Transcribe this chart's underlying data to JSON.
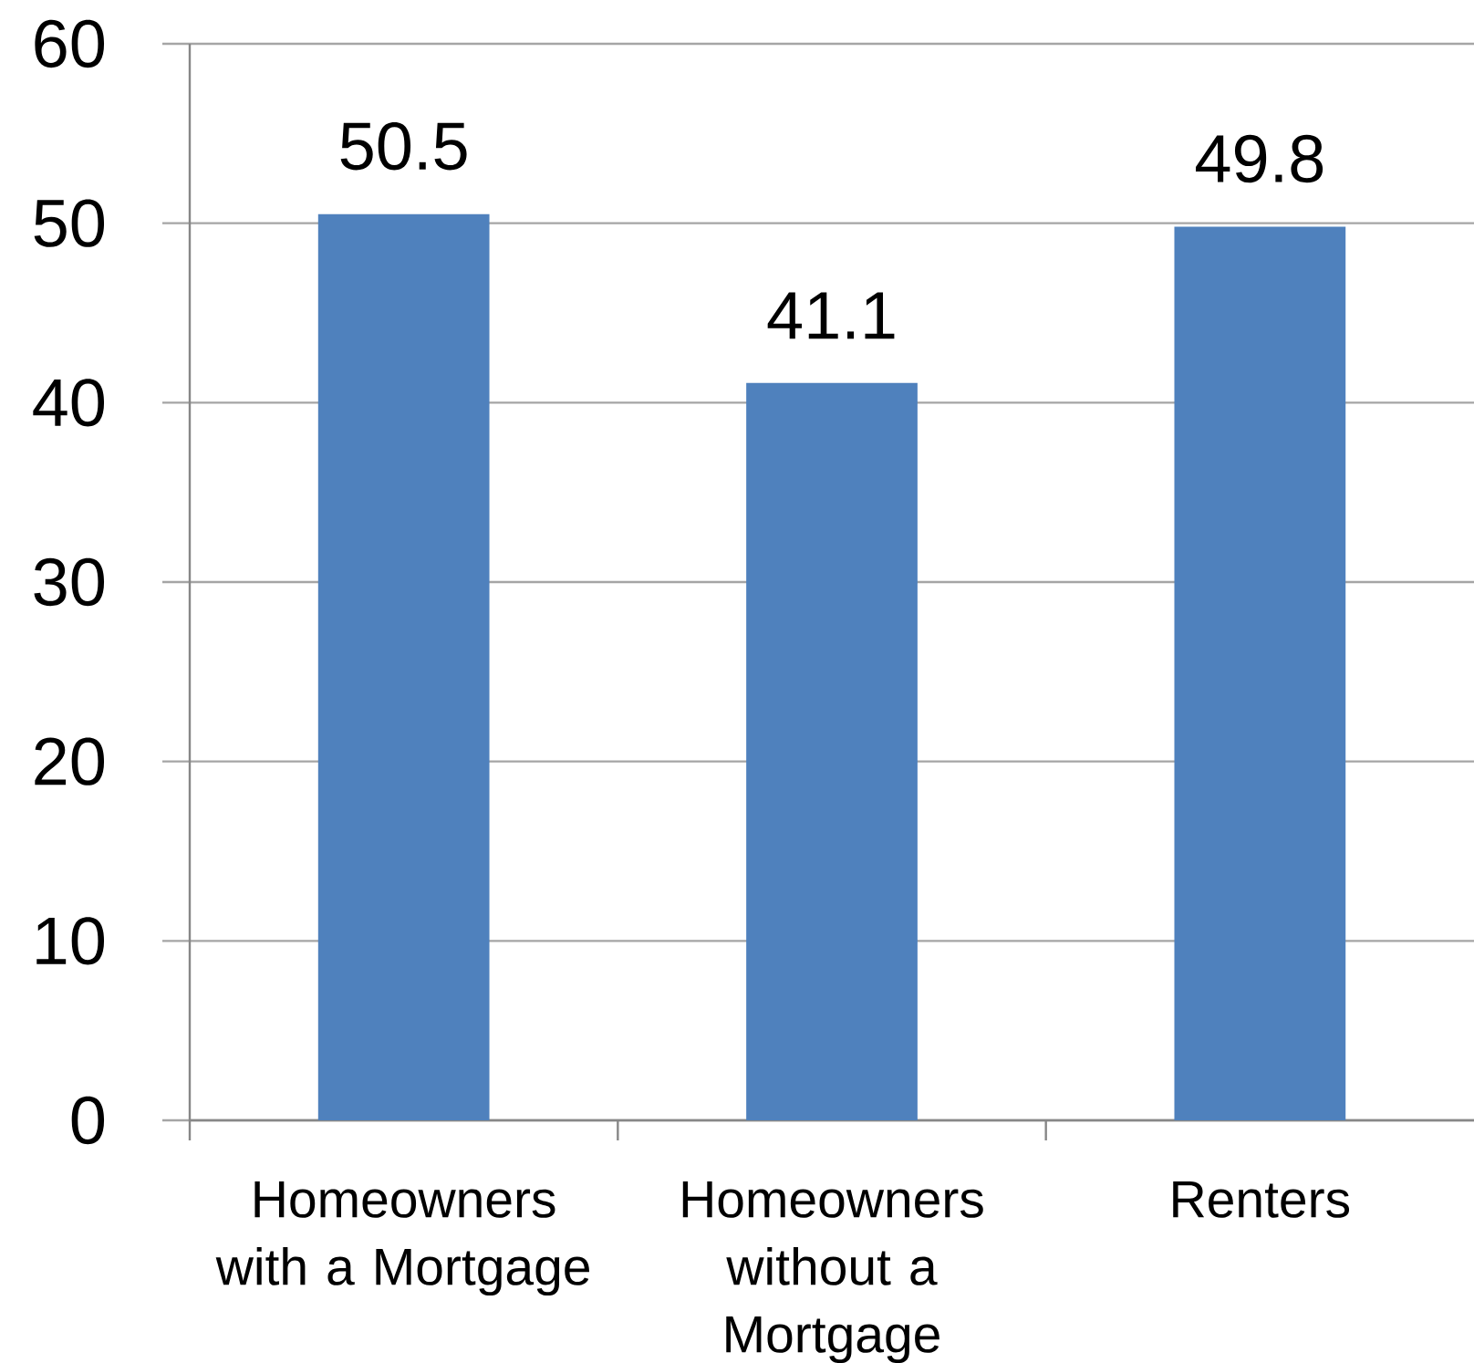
{
  "chart_data": {
    "type": "bar",
    "categories": [
      "Homeowners with a Mortgage",
      "Homeowners without a Mortgage",
      "Renters"
    ],
    "values": [
      50.5,
      41.1,
      49.8
    ],
    "color": "#4f81bd",
    "data_labels": true,
    "ylim": [
      0,
      60
    ],
    "yticks": [
      0,
      10,
      20,
      30,
      40,
      50,
      60
    ],
    "grid": "y"
  }
}
